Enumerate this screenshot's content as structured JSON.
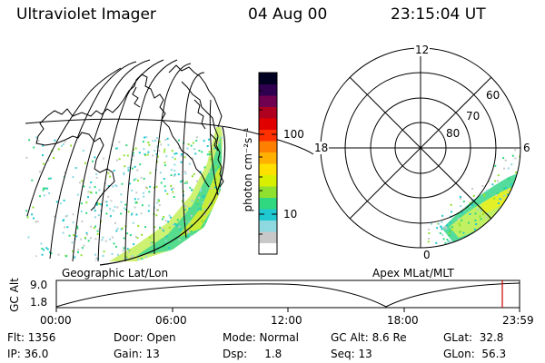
{
  "header": {
    "title": "Ultraviolet Imager",
    "date": "04 Aug 00",
    "time": "23:15:04 UT"
  },
  "map_panel": {
    "label": "Geographic Lat/Lon"
  },
  "colorbar": {
    "unit_label": "photon cm⁻²s⁻¹",
    "tick_labels": [
      "100",
      "10"
    ],
    "colors": [
      "#ffffff",
      "#c8c8c8",
      "#8ed8e0",
      "#20c8d0",
      "#30d880",
      "#90e030",
      "#d8f000",
      "#ffe000",
      "#ffb000",
      "#ff8000",
      "#ff3000",
      "#e00000",
      "#b00020",
      "#700050",
      "#300050",
      "#000020"
    ]
  },
  "polar_panel": {
    "label": "Apex MLat/MLT",
    "mlt_labels": {
      "top": "12",
      "left": "18",
      "right": "6",
      "bottom": "0"
    },
    "lat_labels": [
      "60",
      "70",
      "80"
    ]
  },
  "timeline": {
    "axis_label": "GC Alt",
    "y_ticks": [
      "9.0",
      "1.8"
    ],
    "x_ticks": [
      "00:00",
      "06:00",
      "12:00",
      "18:00",
      "23:59"
    ],
    "marker_color": "#cc0000"
  },
  "info": {
    "flt": "Flt: 1356",
    "ip": "IP: 36.0",
    "door": "Door: Open",
    "gain": "Gain: 13",
    "mode": "Mode: Normal",
    "dsp": "Dsp:     1.8",
    "gc_alt": "GC Alt: 8.6 Re",
    "seq": "Seq: 13",
    "glat": "GLat:  32.8",
    "glon": "GLon:  56.3"
  }
}
